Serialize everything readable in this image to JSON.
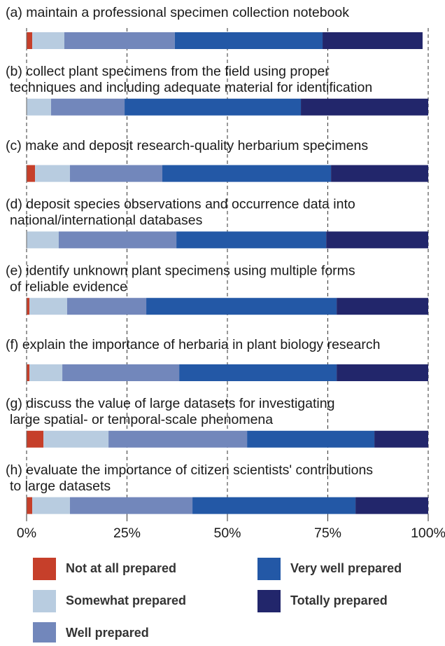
{
  "chart_data": {
    "type": "stacked-barh",
    "panels": [
      {
        "title": [
          "(a) maintain a professional specimen collection notebook"
        ],
        "values": [
          1.4,
          8.0,
          27.5,
          36.8,
          24.9
        ]
      },
      {
        "title": [
          "(b) collect plant specimens from the field using proper",
          "techniques and including adequate material for identification"
        ],
        "values": [
          0,
          6.1,
          18.3,
          43.9,
          31.7
        ]
      },
      {
        "title": [
          "(c) make and deposit research-quality herbarium specimens"
        ],
        "values": [
          2.1,
          8.7,
          23.0,
          42.0,
          24.2
        ]
      },
      {
        "title": [
          "(d) deposit species observations and occurrence data into",
          "national/international databases"
        ],
        "values": [
          0,
          8.0,
          29.3,
          37.3,
          25.4
        ]
      },
      {
        "title": [
          "(e) identify unknown plant specimens using multiple forms",
          "of reliable evidence"
        ],
        "values": [
          0.7,
          9.4,
          19.7,
          47.4,
          22.8
        ]
      },
      {
        "title": [
          "(f) explain the importance of herbaria in plant biology research"
        ],
        "values": [
          0.7,
          8.2,
          29.1,
          39.2,
          22.8
        ]
      },
      {
        "title": [
          "(g) discuss the value of large datasets for investigating",
          "large spatial- or temporal-scale phenomena"
        ],
        "values": [
          4.2,
          16.2,
          34.5,
          31.7,
          13.4
        ]
      },
      {
        "title": [
          "(h) evaluate the importance of citizen scientists' contributions",
          "to large datasets"
        ],
        "values": [
          1.4,
          9.4,
          30.5,
          40.6,
          18.1
        ]
      }
    ],
    "series": [
      {
        "name": "Not at all prepared",
        "color": "#c63f2a"
      },
      {
        "name": "Somewhat prepared",
        "color": "#b8cce0"
      },
      {
        "name": "Well prepared",
        "color": "#7287bb"
      },
      {
        "name": "Very well prepared",
        "color": "#2358a6"
      },
      {
        "name": "Totally prepared",
        "color": "#22266b"
      }
    ],
    "xlim": [
      0,
      100
    ],
    "xticks": [
      {
        "value": 0,
        "label": "0%"
      },
      {
        "value": 25,
        "label": "25%"
      },
      {
        "value": 50,
        "label": "50%"
      },
      {
        "value": 75,
        "label": "75%"
      },
      {
        "value": 100,
        "label": "100%"
      }
    ],
    "grid": true
  }
}
